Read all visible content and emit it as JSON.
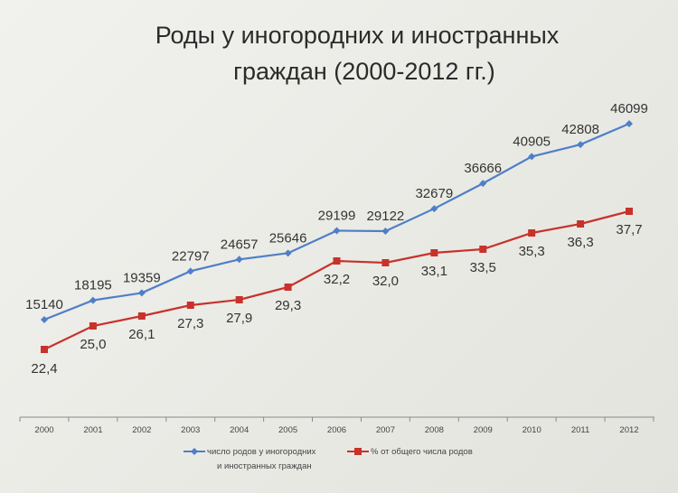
{
  "chart_data": {
    "type": "line",
    "title_lines": [
      "Роды у иногородних и иностранных",
      "граждан (2000-2012 гг.)"
    ],
    "categories": [
      "2000",
      "2001",
      "2002",
      "2003",
      "2004",
      "2005",
      "2006",
      "2007",
      "2008",
      "2009",
      "2010",
      "2011",
      "2012"
    ],
    "series": [
      {
        "name_lines": [
          "число родов у иногородних",
          "и иностранных граждан"
        ],
        "color": "#4f7fc7",
        "marker": "diamond",
        "values": [
          15140,
          18195,
          19359,
          22797,
          24657,
          25646,
          29199,
          29122,
          32679,
          36666,
          40905,
          42808,
          46099
        ],
        "labels": [
          "15140",
          "18195",
          "19359",
          "22797",
          "24657",
          "25646",
          "29199",
          "29122",
          "32679",
          "36666",
          "40905",
          "42808",
          "46099"
        ]
      },
      {
        "name_lines": [
          "% от общего числа родов"
        ],
        "color": "#c8322b",
        "marker": "square",
        "values": [
          22.4,
          25.0,
          26.1,
          27.3,
          27.9,
          29.3,
          32.2,
          32.0,
          33.1,
          33.5,
          35.3,
          36.3,
          37.7
        ],
        "labels": [
          "22,4",
          "25,0",
          "26,1",
          "27,3",
          "27,9",
          "29,3",
          "32,2",
          "32,0",
          "33,1",
          "33,5",
          "35,3",
          "36,3",
          "37,7"
        ]
      }
    ],
    "grid": false,
    "legend_position": "bottom"
  }
}
